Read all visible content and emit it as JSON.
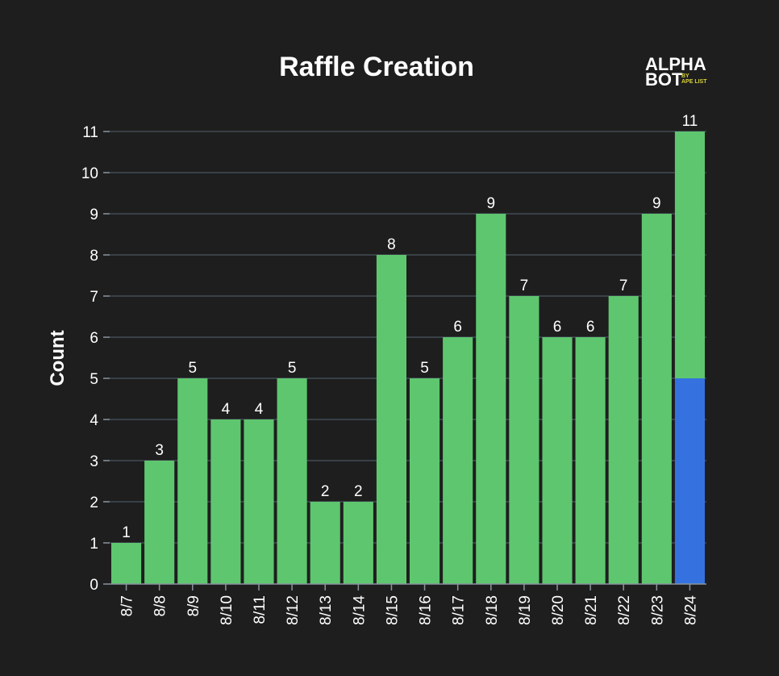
{
  "logo": {
    "line1": "ALPHA",
    "line2": "BOT",
    "by": "BY",
    "sub": "APE LIST"
  },
  "chart_data": {
    "type": "bar",
    "title": "Raffle Creation",
    "xlabel": "",
    "ylabel": "Count",
    "ylim": [
      0,
      11
    ],
    "yticks": [
      0,
      1,
      2,
      3,
      4,
      5,
      6,
      7,
      8,
      9,
      10,
      11
    ],
    "grid": true,
    "stacked": true,
    "categories": [
      "8/7",
      "8/8",
      "8/9",
      "8/10",
      "8/11",
      "8/12",
      "8/13",
      "8/14",
      "8/15",
      "8/16",
      "8/17",
      "8/18",
      "8/19",
      "8/20",
      "8/21",
      "8/22",
      "8/23",
      "8/24"
    ],
    "totals": [
      1,
      3,
      5,
      4,
      4,
      5,
      2,
      2,
      8,
      5,
      6,
      9,
      7,
      6,
      6,
      7,
      9,
      11
    ],
    "series": [
      {
        "color": "#3572e0",
        "values": [
          0,
          0,
          0,
          0,
          0,
          0,
          0,
          0,
          0,
          0,
          0,
          0,
          0,
          0,
          0,
          0,
          0,
          5
        ]
      },
      {
        "color": "#5ec66f",
        "values": [
          1,
          3,
          5,
          4,
          4,
          5,
          2,
          2,
          8,
          5,
          6,
          9,
          7,
          6,
          6,
          7,
          9,
          6
        ]
      }
    ]
  }
}
